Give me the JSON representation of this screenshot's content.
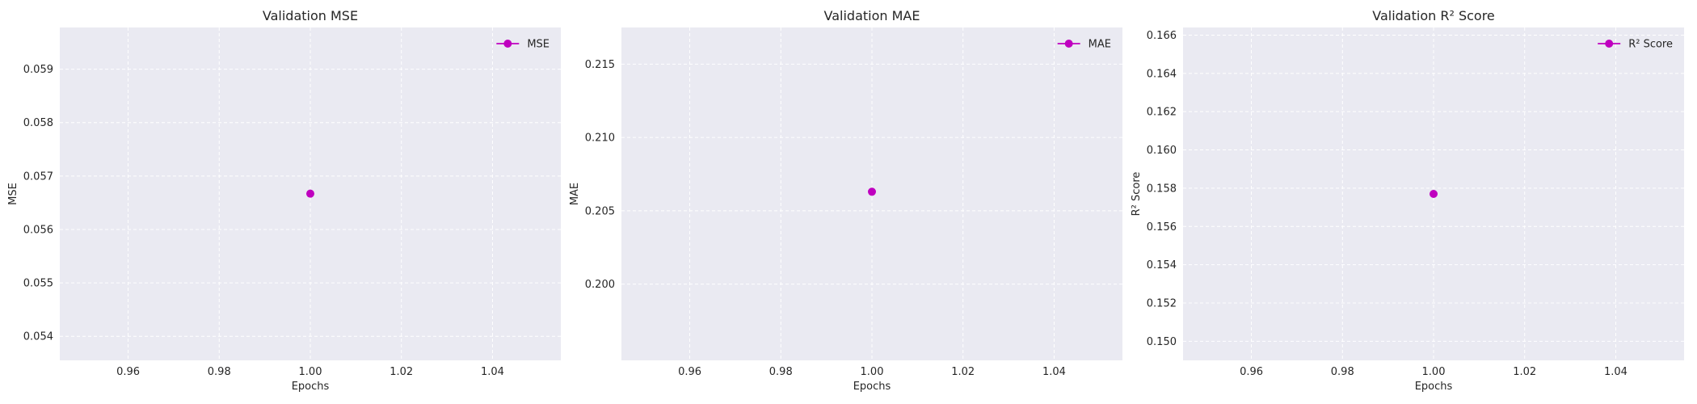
{
  "chart_data": [
    {
      "type": "line",
      "title": "Validation MSE",
      "xlabel": "Epochs",
      "ylabel": "MSE",
      "xlim": [
        0.945,
        1.055
      ],
      "ylim": [
        0.05355,
        0.05978
      ],
      "xticks": [
        "0.96",
        "0.98",
        "1.00",
        "1.02",
        "1.04"
      ],
      "yticks": [
        "0.054",
        "0.055",
        "0.056",
        "0.057",
        "0.058",
        "0.059"
      ],
      "grid": true,
      "legend": "top-right",
      "series": [
        {
          "name": "MSE",
          "color": "#bf00bf",
          "x": [
            1.0
          ],
          "y": [
            0.05667
          ]
        }
      ]
    },
    {
      "type": "line",
      "title": "Validation MAE",
      "xlabel": "Epochs",
      "ylabel": "MAE",
      "xlim": [
        0.945,
        1.055
      ],
      "ylim": [
        0.1948,
        0.2175
      ],
      "xticks": [
        "0.96",
        "0.98",
        "1.00",
        "1.02",
        "1.04"
      ],
      "yticks": [
        "0.200",
        "0.205",
        "0.210",
        "0.215"
      ],
      "grid": true,
      "legend": "top-right",
      "series": [
        {
          "name": "MAE",
          "color": "#bf00bf",
          "x": [
            1.0
          ],
          "y": [
            0.2063
          ]
        }
      ]
    },
    {
      "type": "line",
      "title": "Validation R² Score",
      "xlabel": "Epochs",
      "ylabel": "R² Score",
      "xlim": [
        0.945,
        1.055
      ],
      "ylim": [
        0.149,
        0.1664
      ],
      "xticks": [
        "0.96",
        "0.98",
        "1.00",
        "1.02",
        "1.04"
      ],
      "yticks": [
        "0.150",
        "0.152",
        "0.154",
        "0.156",
        "0.158",
        "0.160",
        "0.162",
        "0.164",
        "0.166"
      ],
      "grid": true,
      "legend": "top-right",
      "series": [
        {
          "name": "R² Score",
          "color": "#bf00bf",
          "x": [
            1.0
          ],
          "y": [
            0.1577
          ]
        }
      ]
    }
  ]
}
